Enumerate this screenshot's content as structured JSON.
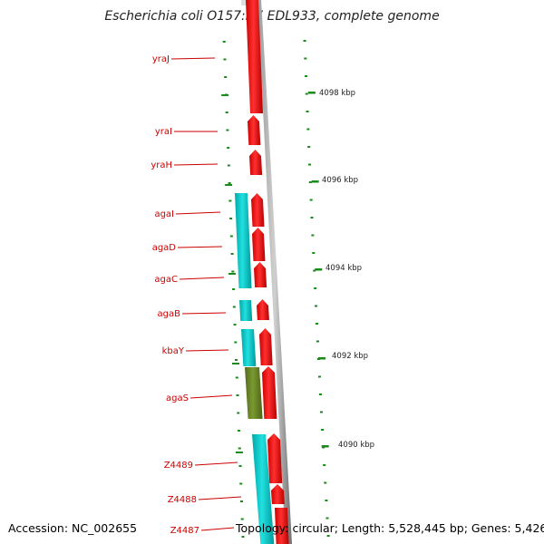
{
  "title": "Escherichia coli O157:H7 EDL933, complete genome",
  "footer": {
    "accession": "Accession: NC_002655",
    "topology": "Topology: circular; Length: 5,528,445 bp; Genes: 5,426"
  },
  "colors": {
    "forward_gene": "#ff0000",
    "reverse_gene": "#00cccc",
    "highlight_gene": "#6b8e23",
    "label_text": "#cc0000",
    "tick_marks": "#1a8a1a",
    "backbone": "#888888"
  },
  "gene_labels": [
    "yraJ",
    "yraI",
    "yraH",
    "agaI",
    "agaD",
    "agaC",
    "agaB",
    "kbaY",
    "agaS",
    "Z4489",
    "Z4488",
    "Z4487"
  ],
  "ruler_labels": [
    "4098 kbp",
    "4096 kbp",
    "4094 kbp",
    "4092 kbp",
    "4090 kbp"
  ]
}
